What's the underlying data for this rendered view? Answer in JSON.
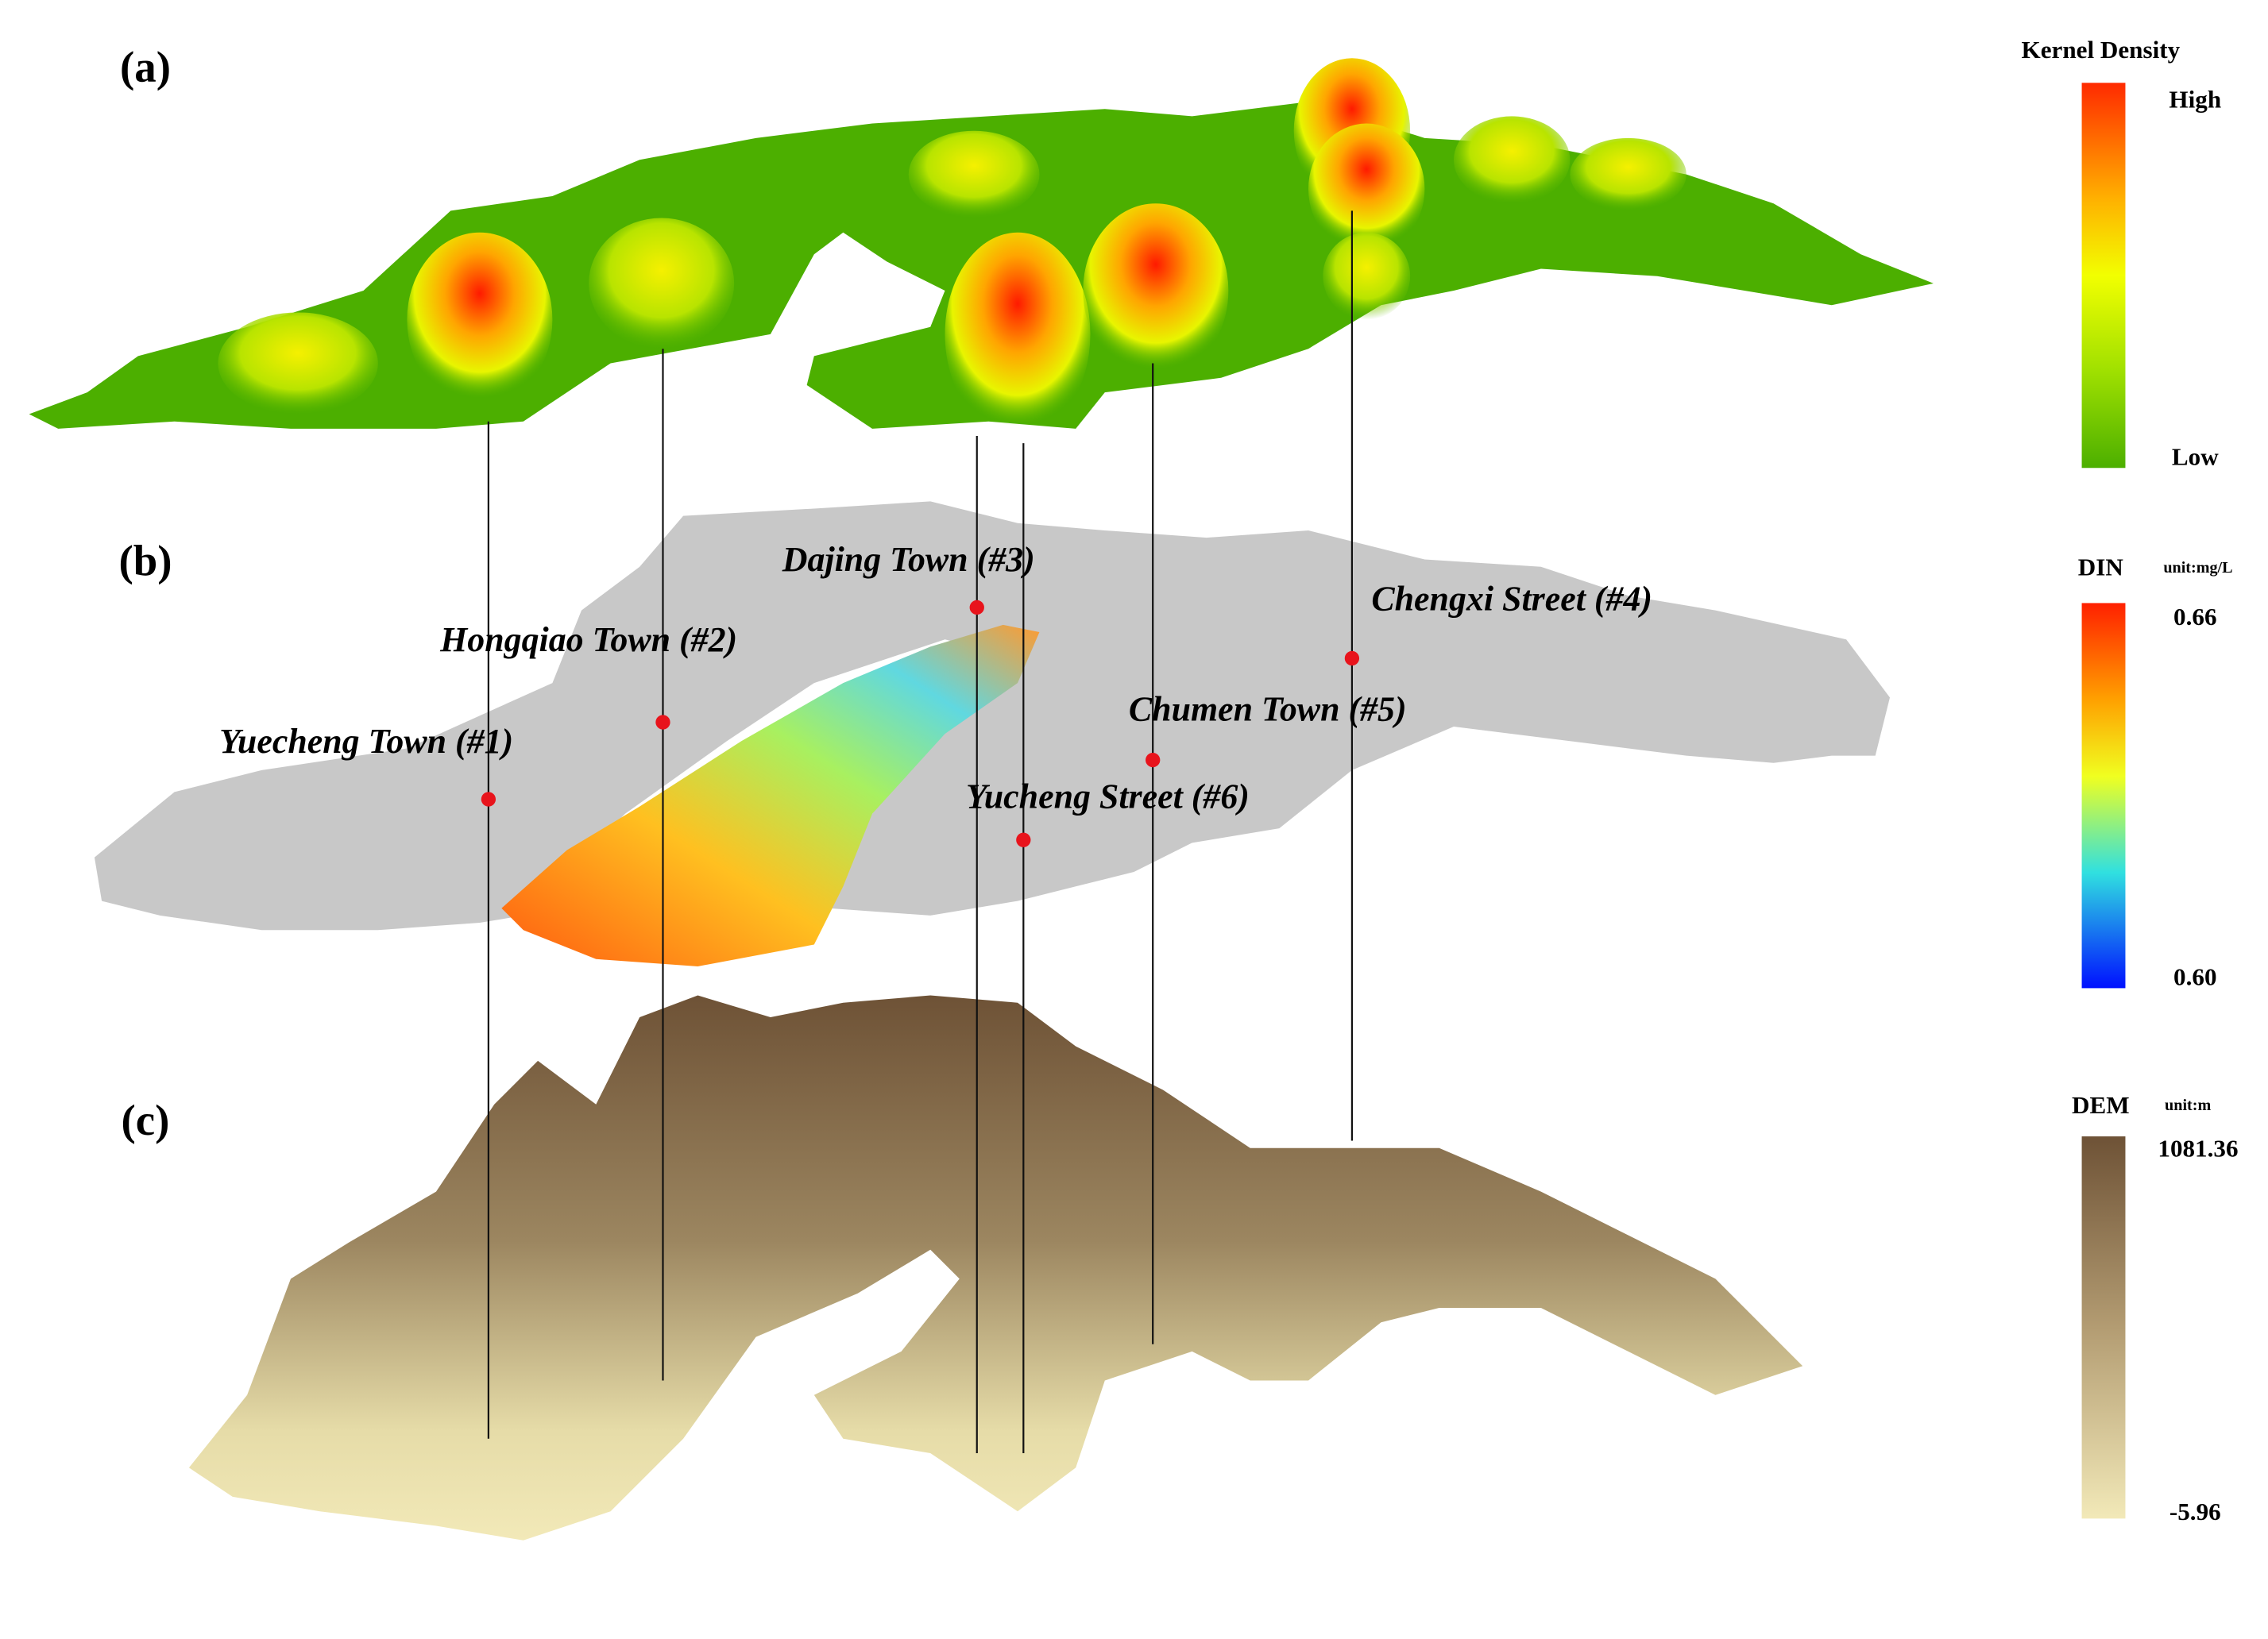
{
  "panels": [
    {
      "label": "(a)"
    },
    {
      "label": "(b)"
    },
    {
      "label": "(c)"
    }
  ],
  "towns": [
    {
      "label": "Yuecheng Town (#1)"
    },
    {
      "label": "Hongqiao Town (#2)"
    },
    {
      "label": "Dajing Town (#3)"
    },
    {
      "label": "Chengxi Street (#4)"
    },
    {
      "label": "Chumen Town (#5)"
    },
    {
      "label": "Yucheng Street (#6)"
    }
  ],
  "legends": {
    "kernel": {
      "title": "Kernel Density",
      "high": "High",
      "low": "Low"
    },
    "din": {
      "title": "DIN",
      "unit": "unit:mg/L",
      "max": "0.66",
      "min": "0.60"
    },
    "dem": {
      "title": "DEM",
      "unit": "unit:m",
      "max": "1081.36",
      "min": "-5.96"
    }
  }
}
